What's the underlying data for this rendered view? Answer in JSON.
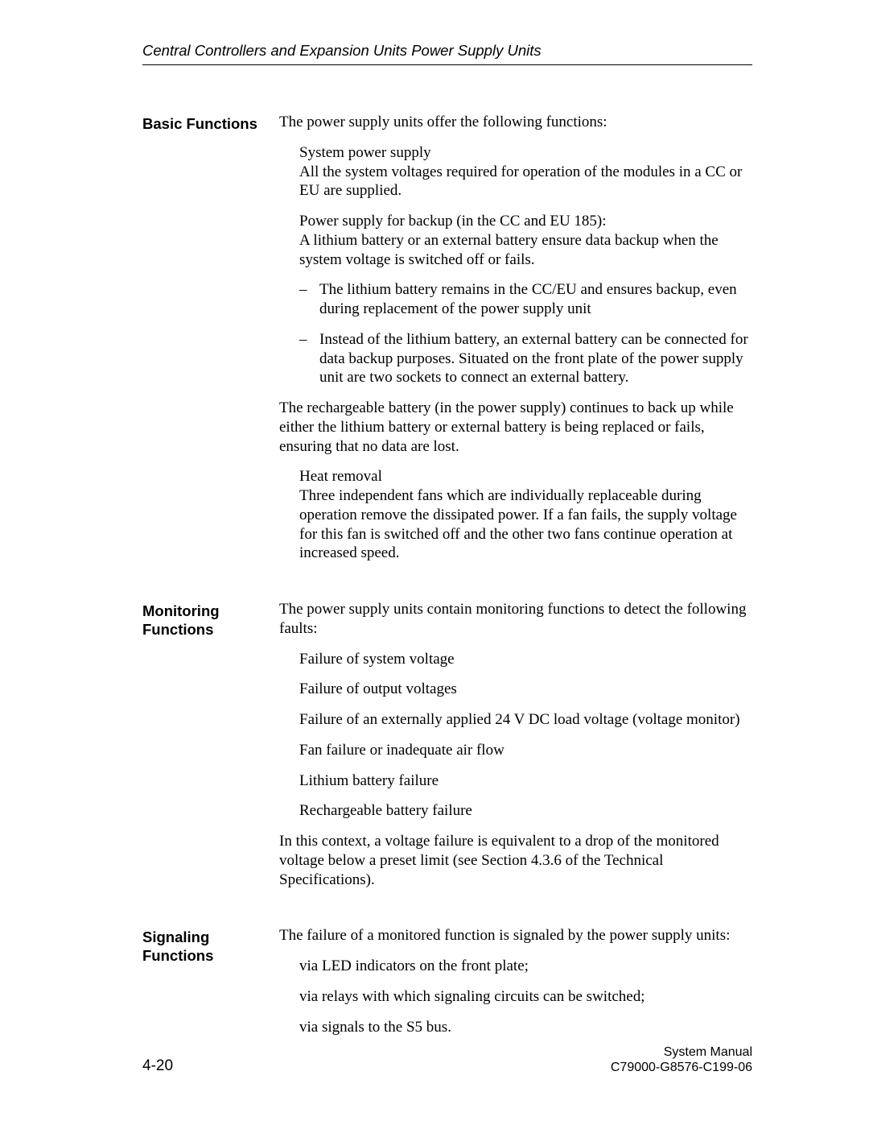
{
  "header": {
    "title": "Central Controllers and Expansion Units Power Supply Units"
  },
  "sections": {
    "basic": {
      "label": "Basic Functions",
      "intro": "The power supply units offer the following functions:",
      "sysPower": {
        "title": "System power supply",
        "text": "All the system voltages required for operation of the modules in a CC or EU are supplied."
      },
      "backup": {
        "title": "Power supply for backup (in the CC and EU 185):",
        "text": "A lithium battery or an external battery ensure data backup when the system voltage is switched off or fails.",
        "b1": "The lithium battery remains in the CC/EU and ensures backup, even during replacement of the power supply unit",
        "b2": "Instead of the lithium battery, an external battery can be connected for data backup purposes. Situated on the front plate of the power supply unit are two sockets to connect an external battery."
      },
      "recharge": "The rechargeable battery (in the power supply) continues to back up while either the lithium battery or external battery is being replaced or fails, ensuring that no data are lost.",
      "heat": {
        "title": "Heat removal",
        "text": "Three independent fans which are individually replaceable during operation remove the dissipated power. If a fan fails, the supply voltage for this fan is switched off and the other two fans continue operation at increased speed."
      }
    },
    "monitoring": {
      "label": "Monitoring Functions",
      "intro": "The power supply units contain monitoring functions to detect the following faults:",
      "i1": "Failure of system voltage",
      "i2": "Failure of output voltages",
      "i3": "Failure of an externally applied 24 V DC load voltage (voltage monitor)",
      "i4": "Fan failure or inadequate air flow",
      "i5": "Lithium battery failure",
      "i6": "Rechargeable battery failure",
      "tail": "In this context, a voltage failure is equivalent to a drop of the monitored voltage below a preset limit (see Section 4.3.6 of the Technical Specifications)."
    },
    "signaling": {
      "label": "Signaling Functions",
      "intro": "The failure of a monitored function is signaled by the power supply units:",
      "i1": "via LED indicators on the front plate;",
      "i2": "via relays with which signaling circuits can be switched;",
      "i3": "via signals to the S5 bus."
    }
  },
  "footer": {
    "pageNum": "4-20",
    "line1": "System Manual",
    "line2": "C79000-G8576-C199-06"
  }
}
